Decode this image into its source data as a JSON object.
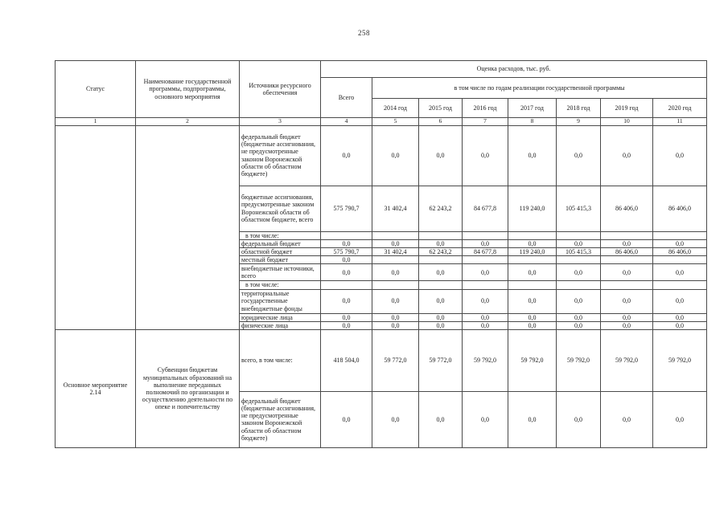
{
  "page": {
    "number": "258"
  },
  "table": {
    "header": {
      "col_status": "Статус",
      "col_name": "Наименование государственной программы, подпрограммы, основного мероприятия",
      "col_source": "Источники ресурсного обеспечения",
      "col_estimate": "Оценка расходов, тыс. руб.",
      "col_total": "Всего",
      "col_years_group": "в том числе по годам реализации государственной программы",
      "years": [
        "2014 год",
        "2015 год",
        "2016 год",
        "2017 год",
        "2018 год",
        "2019 год",
        "2020 год"
      ],
      "col_numbers": [
        "1",
        "2",
        "3",
        "4",
        "5",
        "6",
        "7",
        "8",
        "9",
        "10",
        "11"
      ]
    },
    "sections": [
      {
        "status": "",
        "name": "",
        "rows": [
          {
            "label": "федеральный бюджет (бюджетные ассигнования, не предусмотренные законом Воронежской области об областном бюджете)",
            "values": [
              "0,0",
              "0,0",
              "0,0",
              "0,0",
              "0,0",
              "0,0",
              "0,0",
              "0,0"
            ]
          },
          {
            "label": "бюджетные ассигнования, предусмотренные законом Воронежской области об областном бюджете, всего",
            "values": [
              "575 790,7",
              "31 402,4",
              "62 243,2",
              "84 677,8",
              "119 240,0",
              "105 415,3",
              "86 406,0",
              "86 406,0"
            ]
          },
          {
            "label": "в том числе:",
            "kind": "subhead",
            "values": [
              "",
              "",
              "",
              "",
              "",
              "",
              "",
              ""
            ]
          },
          {
            "label": "федеральный бюджет",
            "values": [
              "0,0",
              "0,0",
              "0,0",
              "0,0",
              "0,0",
              "0,0",
              "0,0",
              "0,0"
            ]
          },
          {
            "label": "областной бюджет",
            "values": [
              "575 790,7",
              "31 402,4",
              "62 243,2",
              "84 677,8",
              "119 240,0",
              "105 415,3",
              "86 406,0",
              "86 406,0"
            ]
          },
          {
            "label": "местный бюджет",
            "values": [
              "0,0",
              "",
              "",
              "",
              "",
              "",
              "",
              ""
            ]
          },
          {
            "label": "внебюджетные источники, всего",
            "values": [
              "0,0",
              "0,0",
              "0,0",
              "0,0",
              "0,0",
              "0,0",
              "0,0",
              "0,0"
            ]
          },
          {
            "label": "в том числе:",
            "kind": "subhead",
            "values": [
              "",
              "",
              "",
              "",
              "",
              "",
              "",
              ""
            ]
          },
          {
            "label": "территориальные государственные внебюджетные фонды",
            "values": [
              "0,0",
              "0,0",
              "0,0",
              "0,0",
              "0,0",
              "0,0",
              "0,0",
              "0,0"
            ]
          },
          {
            "label": "юридические лица",
            "values": [
              "0,0",
              "0,0",
              "0,0",
              "0,0",
              "0,0",
              "0,0",
              "0,0",
              "0,0"
            ]
          },
          {
            "label": "физические лица",
            "values": [
              "0,0",
              "0,0",
              "0,0",
              "0,0",
              "0,0",
              "0,0",
              "0,0",
              "0,0"
            ]
          }
        ]
      },
      {
        "status": "Основное мероприятие 2.14",
        "name": "Субвенции бюджетам муниципальных образований на выполнение переданных полномочий по организации и осуществлению деятельности по опеке и попечительству",
        "rows": [
          {
            "label": "всего, в том числе:",
            "values": [
              "418 504,0",
              "59 772,0",
              "59 772,0",
              "59 792,0",
              "59 792,0",
              "59 792,0",
              "59 792,0",
              "59 792,0"
            ]
          },
          {
            "label": "федеральный бюджет (бюджетные ассигнования, не предусмотренные законом Воронежской области об областном бюджете)",
            "values": [
              "0,0",
              "0,0",
              "0,0",
              "0,0",
              "0,0",
              "0,0",
              "0,0",
              "0,0"
            ]
          }
        ]
      }
    ]
  }
}
